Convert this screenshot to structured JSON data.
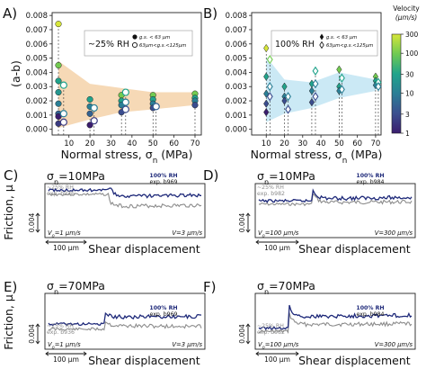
{
  "chart_data": [
    {
      "panel": "A)",
      "type": "scatter",
      "legend_title": "~25% RH",
      "ylabel": "(a-b)",
      "xlabel_main": "Normal stress, σ",
      "xlabel_sub": "n",
      "xlabel_unit": "(MPa)",
      "x_ticks": [
        10,
        20,
        30,
        40,
        50,
        60,
        70
      ],
      "y_ticks": [
        0.0,
        0.001,
        0.002,
        0.003,
        0.004,
        0.005,
        0.006,
        0.007,
        0.008
      ],
      "y_tick_labels": [
        "0.000",
        "0.001",
        "0.002",
        "0.003",
        "0.004",
        "0.005",
        "0.006",
        "0.007",
        "0.008"
      ],
      "xlim": [
        2,
        73
      ],
      "ylim": [
        -0.0004,
        0.0082
      ],
      "legend_small": [
        "g.s. < 63 μm",
        "63μm<g.s.<125μm"
      ],
      "band_color": "#f6d9b6",
      "band_upper": [
        [
          5,
          0.0048
        ],
        [
          20,
          0.0032
        ],
        [
          35,
          0.0029
        ],
        [
          50,
          0.0026
        ],
        [
          70,
          0.0026
        ]
      ],
      "band_lower": [
        [
          5,
          0.0001
        ],
        [
          20,
          0.0007
        ],
        [
          35,
          0.0012
        ],
        [
          50,
          0.0014
        ],
        [
          70,
          0.0017
        ]
      ],
      "groups": [
        {
          "x": 5,
          "points": [
            [
              5,
              0.0074,
              300
            ],
            [
              5,
              0.0045,
              100
            ],
            [
              5,
              0.0034,
              30
            ],
            [
              5,
              0.0026,
              20
            ],
            [
              5,
              0.0018,
              10
            ],
            [
              5,
              0.0011,
              5
            ],
            [
              5,
              0.0009,
              1
            ],
            [
              5,
              0.0004,
              2
            ]
          ],
          "open": [
            [
              7.5,
              0.0031,
              30
            ],
            [
              7.5,
              0.0011,
              10
            ],
            [
              7.5,
              0.0005,
              2
            ]
          ]
        },
        {
          "x": 20,
          "points": [
            [
              20,
              0.0021,
              30
            ],
            [
              20,
              0.0016,
              10
            ],
            [
              20,
              0.0011,
              5
            ],
            [
              20,
              0.0003,
              1
            ]
          ],
          "open": [
            [
              22,
              0.0015,
              10
            ],
            [
              22,
              0.0006,
              2
            ]
          ]
        },
        {
          "x": 35,
          "points": [
            [
              35,
              0.0024,
              100
            ],
            [
              35,
              0.002,
              30
            ],
            [
              35,
              0.0017,
              10
            ],
            [
              35,
              0.0012,
              3
            ]
          ],
          "open": [
            [
              37,
              0.0026,
              30
            ],
            [
              37,
              0.0019,
              10
            ],
            [
              37,
              0.0014,
              3
            ]
          ]
        },
        {
          "x": 50,
          "points": [
            [
              50,
              0.0024,
              100
            ],
            [
              50,
              0.0021,
              30
            ],
            [
              50,
              0.0018,
              10
            ],
            [
              50,
              0.0015,
              3
            ]
          ],
          "open": [
            [
              51.5,
              0.0016,
              5
            ]
          ]
        },
        {
          "x": 70,
          "points": [
            [
              70,
              0.0025,
              100
            ],
            [
              70,
              0.0022,
              30
            ],
            [
              70,
              0.002,
              10
            ],
            [
              70,
              0.0017,
              3
            ]
          ],
          "open": []
        }
      ]
    },
    {
      "panel": "B)",
      "type": "scatter",
      "legend_title": "100% RH",
      "xlabel_main": "Normal stress, σ",
      "xlabel_sub": "n",
      "xlabel_unit": "(MPa)",
      "x_ticks": [
        10,
        20,
        30,
        40,
        50,
        60,
        70
      ],
      "y_ticks": [
        0.0,
        0.001,
        0.002,
        0.003,
        0.004,
        0.005,
        0.006,
        0.007,
        0.008
      ],
      "y_tick_labels": [
        "0.000",
        "0.001",
        "0.002",
        "0.003",
        "0.004",
        "0.005",
        "0.006",
        "0.007",
        "0.008"
      ],
      "xlim": [
        2,
        73
      ],
      "ylim": [
        -0.0004,
        0.0082
      ],
      "legend_small": [
        "g.s. < 63 μm",
        "63μm<g.s.<125μm"
      ],
      "band_color": "#cbe9f5",
      "band_upper": [
        [
          10,
          0.0051
        ],
        [
          20,
          0.0035
        ],
        [
          35,
          0.0033
        ],
        [
          50,
          0.004
        ],
        [
          70,
          0.0035
        ]
      ],
      "band_lower": [
        [
          10,
          0.0005
        ],
        [
          20,
          0.0011
        ],
        [
          35,
          0.0015
        ],
        [
          50,
          0.0022
        ],
        [
          70,
          0.0027
        ]
      ],
      "groups": [
        {
          "x": 10,
          "points": [
            [
              10,
              0.0057,
              300
            ],
            [
              10,
              0.0037,
              30
            ],
            [
              10,
              0.0025,
              10
            ],
            [
              10,
              0.0018,
              3
            ],
            [
              10,
              0.0012,
              1
            ]
          ],
          "open": [
            [
              12,
              0.0049,
              100
            ],
            [
              12,
              0.003,
              10
            ],
            [
              12,
              0.0023,
              3
            ]
          ]
        },
        {
          "x": 20,
          "points": [
            [
              20,
              0.003,
              30
            ],
            [
              20,
              0.0023,
              10
            ],
            [
              20,
              0.002,
              3
            ]
          ],
          "open": [
            [
              22,
              0.0023,
              10
            ],
            [
              22,
              0.0014,
              3
            ]
          ]
        },
        {
          "x": 35,
          "points": [
            [
              35,
              0.0032,
              30
            ],
            [
              35,
              0.0027,
              10
            ],
            [
              35,
              0.0019,
              3
            ]
          ],
          "open": [
            [
              37,
              0.0041,
              30
            ],
            [
              37,
              0.0032,
              10
            ],
            [
              37,
              0.0023,
              3
            ]
          ]
        },
        {
          "x": 50,
          "points": [
            [
              50,
              0.0042,
              100
            ],
            [
              50,
              0.003,
              30
            ],
            [
              50,
              0.0027,
              10
            ]
          ],
          "open": [
            [
              51.5,
              0.0036,
              30
            ],
            [
              51.5,
              0.0028,
              10
            ]
          ]
        },
        {
          "x": 70,
          "points": [
            [
              70,
              0.0037,
              100
            ],
            [
              70,
              0.0034,
              30
            ],
            [
              70,
              0.0031,
              10
            ]
          ],
          "open": [
            [
              71.5,
              0.0033,
              30
            ],
            [
              71.5,
              0.003,
              10
            ]
          ]
        }
      ],
      "colorbar": {
        "title_line1": "Velocity",
        "title_line2": "(μm/s)",
        "ticks": [
          300,
          100,
          30,
          10,
          3,
          1
        ],
        "tick_labels": [
          "300",
          "100",
          "30",
          "10",
          "3",
          "1"
        ],
        "range": [
          1,
          300
        ],
        "scale": "log"
      }
    },
    {
      "panel": "C)",
      "type": "line",
      "title_main": "σ",
      "title_sub": "n",
      "title_tail": "=10MPa",
      "ylabel": "Friction, μ",
      "xlabel": "Shear displacement",
      "scale_tick": "0.004",
      "scale_bar": "100 μm",
      "v_left": "V",
      "v_left_sub": "0",
      "v_left_tail": "=1 μm/s",
      "v_right": "V=3 μm/s",
      "series": [
        {
          "name": "100% RH",
          "label_sub": "exp. b969",
          "color": "#1f2a7a",
          "step_x": 0.4,
          "pre": 0.12,
          "peak": 0.02,
          "post": 0.24,
          "slope": -0.05
        },
        {
          "name": "~25% RH",
          "label_sub": "exp. b936",
          "color": "#8c8c8c",
          "step_x": 0.4,
          "pre": 0.2,
          "peak": 0.31,
          "post": 0.42,
          "slope": -0.03
        }
      ]
    },
    {
      "panel": "D)",
      "type": "line",
      "title_main": "σ",
      "title_sub": "n",
      "title_tail": "=10MPa",
      "xlabel": "Shear displacement",
      "scale_tick": "0.004",
      "scale_bar": "100 μm",
      "v_left": "V",
      "v_left_sub": "0",
      "v_left_tail": "=100 μm/s",
      "v_right": "V=300 μm/s",
      "series": [
        {
          "name": "100% RH",
          "label_sub": "exp. b984",
          "color": "#1f2a7a",
          "step_x": 0.36,
          "pre": 0.32,
          "peak": 0.1,
          "post": 0.28,
          "slope": -0.04
        },
        {
          "name": "~25% RH",
          "label_sub": "exp. b982",
          "color": "#8c8c8c",
          "step_x": 0.36,
          "pre": 0.38,
          "peak": 0.16,
          "post": 0.35,
          "slope": -0.02
        }
      ]
    },
    {
      "panel": "E)",
      "type": "line",
      "title_main": "σ",
      "title_sub": "n",
      "title_tail": "=70MPa",
      "ylabel": "Friction, μ",
      "xlabel": "Shear displacement",
      "scale_tick": "0.004",
      "scale_bar": "100 μm",
      "v_left": "V",
      "v_left_sub": "0",
      "v_left_tail": "=1 μm/s",
      "v_right": "V=3 μm/s",
      "series": [
        {
          "name": "100% RH",
          "label_sub": "exp. b969",
          "color": "#1f2a7a",
          "step_x": 0.37,
          "pre": 0.55,
          "peak": 0.36,
          "post": 0.42,
          "slope": -0.01
        },
        {
          "name": "~25% RH",
          "label_sub": "exp. b936",
          "color": "#8c8c8c",
          "step_x": 0.37,
          "pre": 0.64,
          "peak": 0.46,
          "post": 0.58,
          "slope": 0.02
        }
      ]
    },
    {
      "panel": "F)",
      "type": "line",
      "title_main": "σ",
      "title_sub": "n",
      "title_tail": "=70MPa",
      "xlabel": "Shear displacement",
      "scale_tick": "0.004",
      "scale_bar": "100 μm",
      "v_left": "V",
      "v_left_sub": "0",
      "v_left_tail": "=100 μm/s",
      "v_right": "V=300 μm/s",
      "series": [
        {
          "name": "100% RH",
          "label_sub": "exp. b984",
          "color": "#1f2a7a",
          "step_x": 0.21,
          "pre": 0.62,
          "peak": 0.22,
          "post": 0.42,
          "slope": -0.04
        },
        {
          "name": "~25% RH",
          "label_sub": "exp. b982",
          "color": "#8c8c8c",
          "step_x": 0.21,
          "pre": 0.68,
          "peak": 0.34,
          "post": 0.56,
          "slope": -0.02
        }
      ]
    }
  ]
}
